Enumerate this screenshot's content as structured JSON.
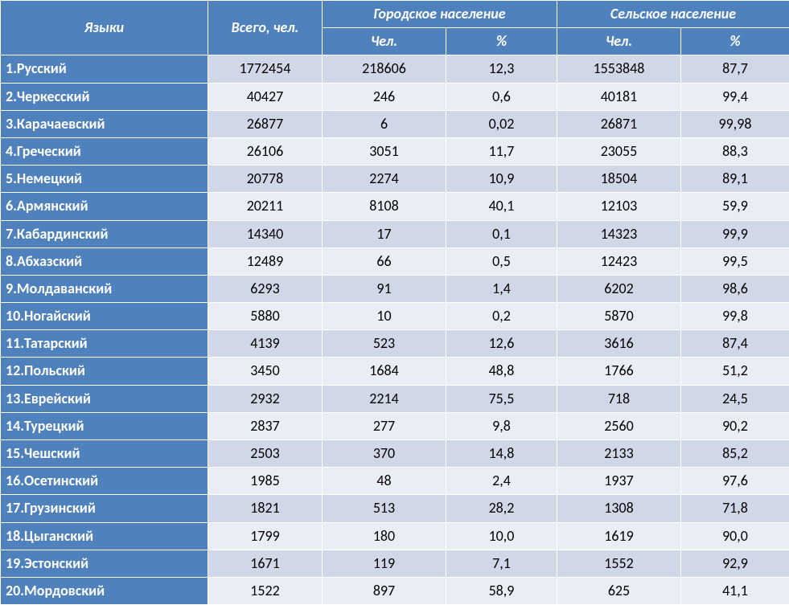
{
  "colors": {
    "header_bg": "#4f81bd",
    "header_fg": "#ffffff",
    "lang_col_bg": "#4f81bd",
    "lang_col_fg": "#ffffff",
    "row_odd_bg": "#d0d8e8",
    "row_even_bg": "#e9edf4",
    "num_fg": "#000000",
    "border": "#ffffff"
  },
  "header": {
    "languages": "Языки",
    "total": "Всего, чел.",
    "urban": "Городское население",
    "rural": "Сельское население",
    "count": "Чел.",
    "percent": "%"
  },
  "rows": [
    {
      "n": "1",
      "name": "Русский",
      "total": "1772454",
      "uc": "218606",
      "up": "12,3",
      "rc": "1553848",
      "rp": "87,7"
    },
    {
      "n": "2",
      "name": "Черкесский",
      "total": "40427",
      "uc": "246",
      "up": "0,6",
      "rc": "40181",
      "rp": "99,4"
    },
    {
      "n": "3",
      "name": "Карачаевский",
      "total": "26877",
      "uc": "6",
      "up": "0,02",
      "rc": "26871",
      "rp": "99,98"
    },
    {
      "n": "4",
      "name": "Греческий",
      "total": "26106",
      "uc": "3051",
      "up": "11,7",
      "rc": "23055",
      "rp": "88,3"
    },
    {
      "n": "5",
      "name": "Немецкий",
      "total": "20778",
      "uc": "2274",
      "up": "10,9",
      "rc": "18504",
      "rp": "89,1"
    },
    {
      "n": "6",
      "name": "Армянский",
      "total": "20211",
      "uc": "8108",
      "up": "40,1",
      "rc": "12103",
      "rp": "59,9"
    },
    {
      "n": "7",
      "name": "Кабардинский",
      "total": "14340",
      "uc": "17",
      "up": "0,1",
      "rc": "14323",
      "rp": "99,9"
    },
    {
      "n": "8",
      "name": "Абхазский",
      "total": "12489",
      "uc": "66",
      "up": "0,5",
      "rc": "12423",
      "rp": "99,5"
    },
    {
      "n": "9",
      "name": "Молдаванский",
      "total": "6293",
      "uc": "91",
      "up": "1,4",
      "rc": "6202",
      "rp": "98,6"
    },
    {
      "n": "10",
      "name": "Ногайский",
      "total": "5880",
      "uc": "10",
      "up": "0,2",
      "rc": "5870",
      "rp": "99,8"
    },
    {
      "n": "11",
      "name": "Татарский",
      "total": "4139",
      "uc": "523",
      "up": "12,6",
      "rc": "3616",
      "rp": "87,4"
    },
    {
      "n": "12",
      "name": "Польский",
      "total": "3450",
      "uc": "1684",
      "up": "48,8",
      "rc": "1766",
      "rp": "51,2"
    },
    {
      "n": "13",
      "name": "Еврейский",
      "total": "2932",
      "uc": "2214",
      "up": "75,5",
      "rc": "718",
      "rp": "24,5"
    },
    {
      "n": "14",
      "name": "Турецкий",
      "total": "2837",
      "uc": "277",
      "up": "9,8",
      "rc": "2560",
      "rp": "90,2"
    },
    {
      "n": "15",
      "name": "Чешский",
      "total": "2503",
      "uc": "370",
      "up": "14,8",
      "rc": "2133",
      "rp": "85,2"
    },
    {
      "n": "16",
      "name": "Осетинский",
      "total": "1985",
      "uc": "48",
      "up": "2,4",
      "rc": "1937",
      "rp": "97,6"
    },
    {
      "n": "17",
      "name": "Грузинский",
      "total": "1821",
      "uc": "513",
      "up": "28,2",
      "rc": "1308",
      "rp": "71,8"
    },
    {
      "n": "18",
      "name": "Цыганский",
      "total": "1799",
      "uc": "180",
      "up": "10,0",
      "rc": "1619",
      "rp": "90,0"
    },
    {
      "n": "19",
      "name": "Эстонский",
      "total": "1671",
      "uc": "119",
      "up": "7,1",
      "rc": "1552",
      "rp": "92,9"
    },
    {
      "n": "20",
      "name": "Мордовский",
      "total": "1522",
      "uc": "897",
      "up": "58,9",
      "rc": "625",
      "rp": "41,1"
    }
  ]
}
